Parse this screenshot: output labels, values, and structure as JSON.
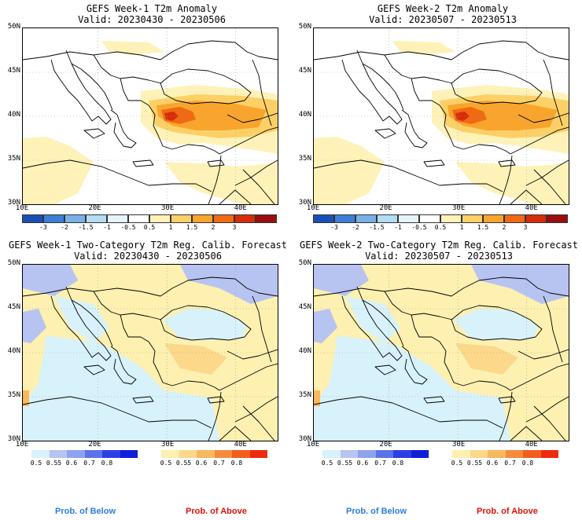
{
  "panels": {
    "p1": {
      "title": "GEFS Week-1 T2m Anomaly",
      "valid": "Valid: 20230430 - 20230506"
    },
    "p2": {
      "title": "GEFS Week-2 T2m Anomaly",
      "valid": "Valid: 20230507 - 20230513"
    },
    "p3": {
      "title": "GEFS Week-1 Two-Category T2m Reg. Calib. Forecast",
      "valid": "Valid: 20230430 - 20230506"
    },
    "p4": {
      "title": "GEFS Week-2 Two-Category T2m Reg. Calib. Forecast",
      "valid": "Valid: 20230507 - 20230513"
    }
  },
  "axes": {
    "lat_labels": [
      "50N",
      "45N",
      "40N",
      "35N",
      "30N"
    ],
    "lon_labels": [
      "10E",
      "20E",
      "30E",
      "40E"
    ]
  },
  "anomaly_colorbar": {
    "ticks": [
      "-3",
      "-2",
      "-1.5",
      "-1",
      "-0.5",
      "0.5",
      "1",
      "1.5",
      "2",
      "3"
    ],
    "colors": [
      "#1a50b5",
      "#3d7fd6",
      "#79b0e8",
      "#b3dcf5",
      "#e4f4fb",
      "#ffffff",
      "#fff2b8",
      "#fcd067",
      "#f9a52d",
      "#f06a13",
      "#d62c0a",
      "#9b0d0d"
    ]
  },
  "prob_colorbars": {
    "below_ticks": [
      "0.5",
      "0.55",
      "0.6",
      "0.7",
      "0.8"
    ],
    "below_colors": [
      "#d7f2fa",
      "#b7c4f1",
      "#8da3ee",
      "#5b73ea",
      "#2b3fe6",
      "#0f1ed9"
    ],
    "above_ticks": [
      "0.5",
      "0.55",
      "0.6",
      "0.7",
      "0.8"
    ],
    "above_colors": [
      "#fdf0b0",
      "#fbd88a",
      "#f9b85e",
      "#f58b3a",
      "#f25d1c",
      "#ee2a0d"
    ],
    "below_label": "Prob. of Below",
    "above_label": "Prob. of Above",
    "below_label_color": "#2a7ee0",
    "above_label_color": "#e0110b"
  }
}
